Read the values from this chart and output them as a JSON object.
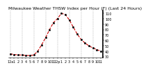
{
  "title": "Milwaukee Weather THSW Index per Hour (F) (Last 24 Hours)",
  "y_values": [
    35,
    34,
    33,
    33,
    32,
    32,
    33,
    40,
    52,
    65,
    80,
    93,
    100,
    110,
    108,
    98,
    85,
    72,
    62,
    55,
    50,
    46,
    43,
    40
  ],
  "x_values": [
    0,
    1,
    2,
    3,
    4,
    5,
    6,
    7,
    8,
    9,
    10,
    11,
    12,
    13,
    14,
    15,
    16,
    17,
    18,
    19,
    20,
    21,
    22,
    23
  ],
  "line_color": "#cc0000",
  "marker_color": "#000000",
  "background_color": "#ffffff",
  "grid_color": "#aaaaaa",
  "ylim": [
    28,
    115
  ],
  "yticks": [
    30,
    40,
    50,
    60,
    70,
    80,
    90,
    100,
    110
  ],
  "xtick_labels": [
    "12a",
    "1",
    "2",
    "3",
    "4",
    "5",
    "6",
    "7",
    "8",
    "9",
    "10",
    "11",
    "12p",
    "1",
    "2",
    "3",
    "4",
    "5",
    "6",
    "7",
    "8",
    "9",
    "10",
    "11"
  ],
  "title_fontsize": 4.5,
  "tick_fontsize": 3.5,
  "line_width": 0.8,
  "marker_size": 1.8
}
